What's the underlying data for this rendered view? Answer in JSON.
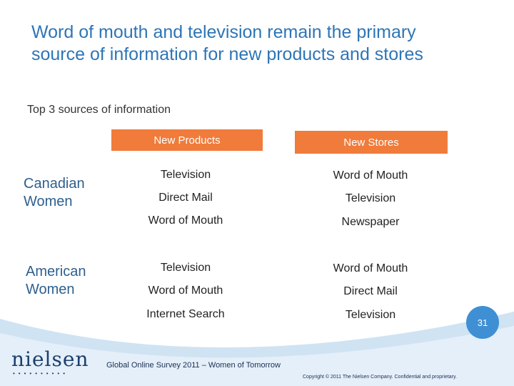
{
  "slide": {
    "title_line1": "Word of mouth and television remain the primary",
    "title_line2": "source of information for new products and stores",
    "subtitle": "Top 3 sources of information"
  },
  "columns": {
    "new_products": "New Products",
    "new_stores": "New Stores"
  },
  "groups": [
    {
      "label_line1": "Canadian",
      "label_line2": "Women",
      "new_products": [
        "Television",
        "Direct Mail",
        "Word of Mouth"
      ],
      "new_stores": [
        "Word of Mouth",
        "Television",
        "Newspaper"
      ]
    },
    {
      "label_line1": "American",
      "label_line2": "Women",
      "new_products": [
        "Television",
        "Word of Mouth",
        "Internet Search"
      ],
      "new_stores": [
        "Word of Mouth",
        "Direct Mail",
        "Television"
      ]
    }
  ],
  "footer": {
    "page_number": "31",
    "logo_text": "nielsen",
    "survey_note": "Global Online Survey 2011 – Women of Tomorrow",
    "copyright": "Copyright © 2011 The Nielsen Company. Confidential and proprietary."
  },
  "colors": {
    "title": "#2e75b6",
    "header_fill": "#f07b3a",
    "group_label": "#2e5f8e",
    "footer_band": "#cfe3f3",
    "page_badge": "#3f8fd4"
  }
}
